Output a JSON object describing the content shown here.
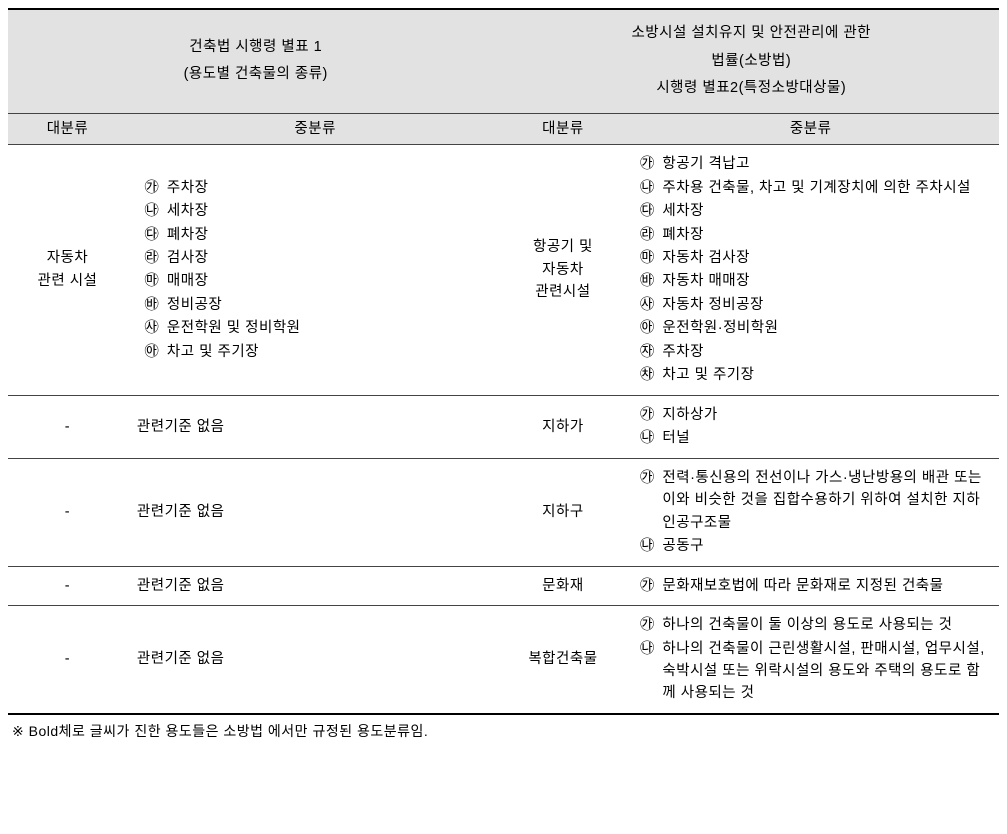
{
  "header": {
    "left_title_l1": "건축법 시행령 별표 1",
    "left_title_l2": "(용도별 건축물의 종류)",
    "right_title_l1": "소방시설 설치유지 및 안전관리에 관한",
    "right_title_l2": "법률(소방법)",
    "right_title_l3": "시행령 별표2(특정소방대상물)",
    "col_major": "대분류",
    "col_minor": "중분류"
  },
  "markers": [
    "㉮",
    "㉯",
    "㉰",
    "㉱",
    "㉲",
    "㉳",
    "㉴",
    "㉵",
    "㉶",
    "㉷"
  ],
  "rows": [
    {
      "left_major_l1": "자동차",
      "left_major_l2": "관련 시설",
      "left_items": [
        "주차장",
        "세차장",
        "폐차장",
        "검사장",
        "매매장",
        "정비공장",
        "운전학원 및 정비학원",
        "차고 및 주기장"
      ],
      "right_major_l1": "항공기 및",
      "right_major_l2": "자동차",
      "right_major_l3": "관련시설",
      "right_items": [
        "항공기 격납고",
        "주차용 건축물, 차고 및 기계장치에 의한 주차시설",
        "세차장",
        "폐차장",
        "자동차 검사장",
        "자동차 매매장",
        "자동차 정비공장",
        "운전학원·정비학원",
        "주차장",
        "차고 및 주기장"
      ]
    },
    {
      "left_major": "-",
      "left_plain": "관련기준 없음",
      "right_major": "지하가",
      "right_items": [
        "지하상가",
        "터널"
      ]
    },
    {
      "left_major": "-",
      "left_plain": "관련기준 없음",
      "right_major": "지하구",
      "right_items": [
        "전력·통신용의 전선이나 가스·냉난방용의 배관 또는 이와 비슷한 것을 집합수용하기 위하여 설치한 지하 인공구조물",
        "공동구"
      ]
    },
    {
      "left_major": "-",
      "left_plain": "관련기준 없음",
      "right_major": "문화재",
      "right_items": [
        "문화재보호법에 따라 문화재로 지정된 건축물"
      ]
    },
    {
      "left_major": "-",
      "left_plain": "관련기준 없음",
      "right_major": "복합건축물",
      "right_items": [
        "하나의 건축물이 둘 이상의 용도로 사용되는 것",
        "하나의 건축물이 근린생활시설, 판매시설, 업무시설, 숙박시설 또는 위락시설의 용도와 주택의 용도로 함께 사용되는 것"
      ]
    }
  ],
  "footnote": "※ Bold체로 글씨가 진한 용도들은 소방법 에서만 규정된 용도분류임."
}
